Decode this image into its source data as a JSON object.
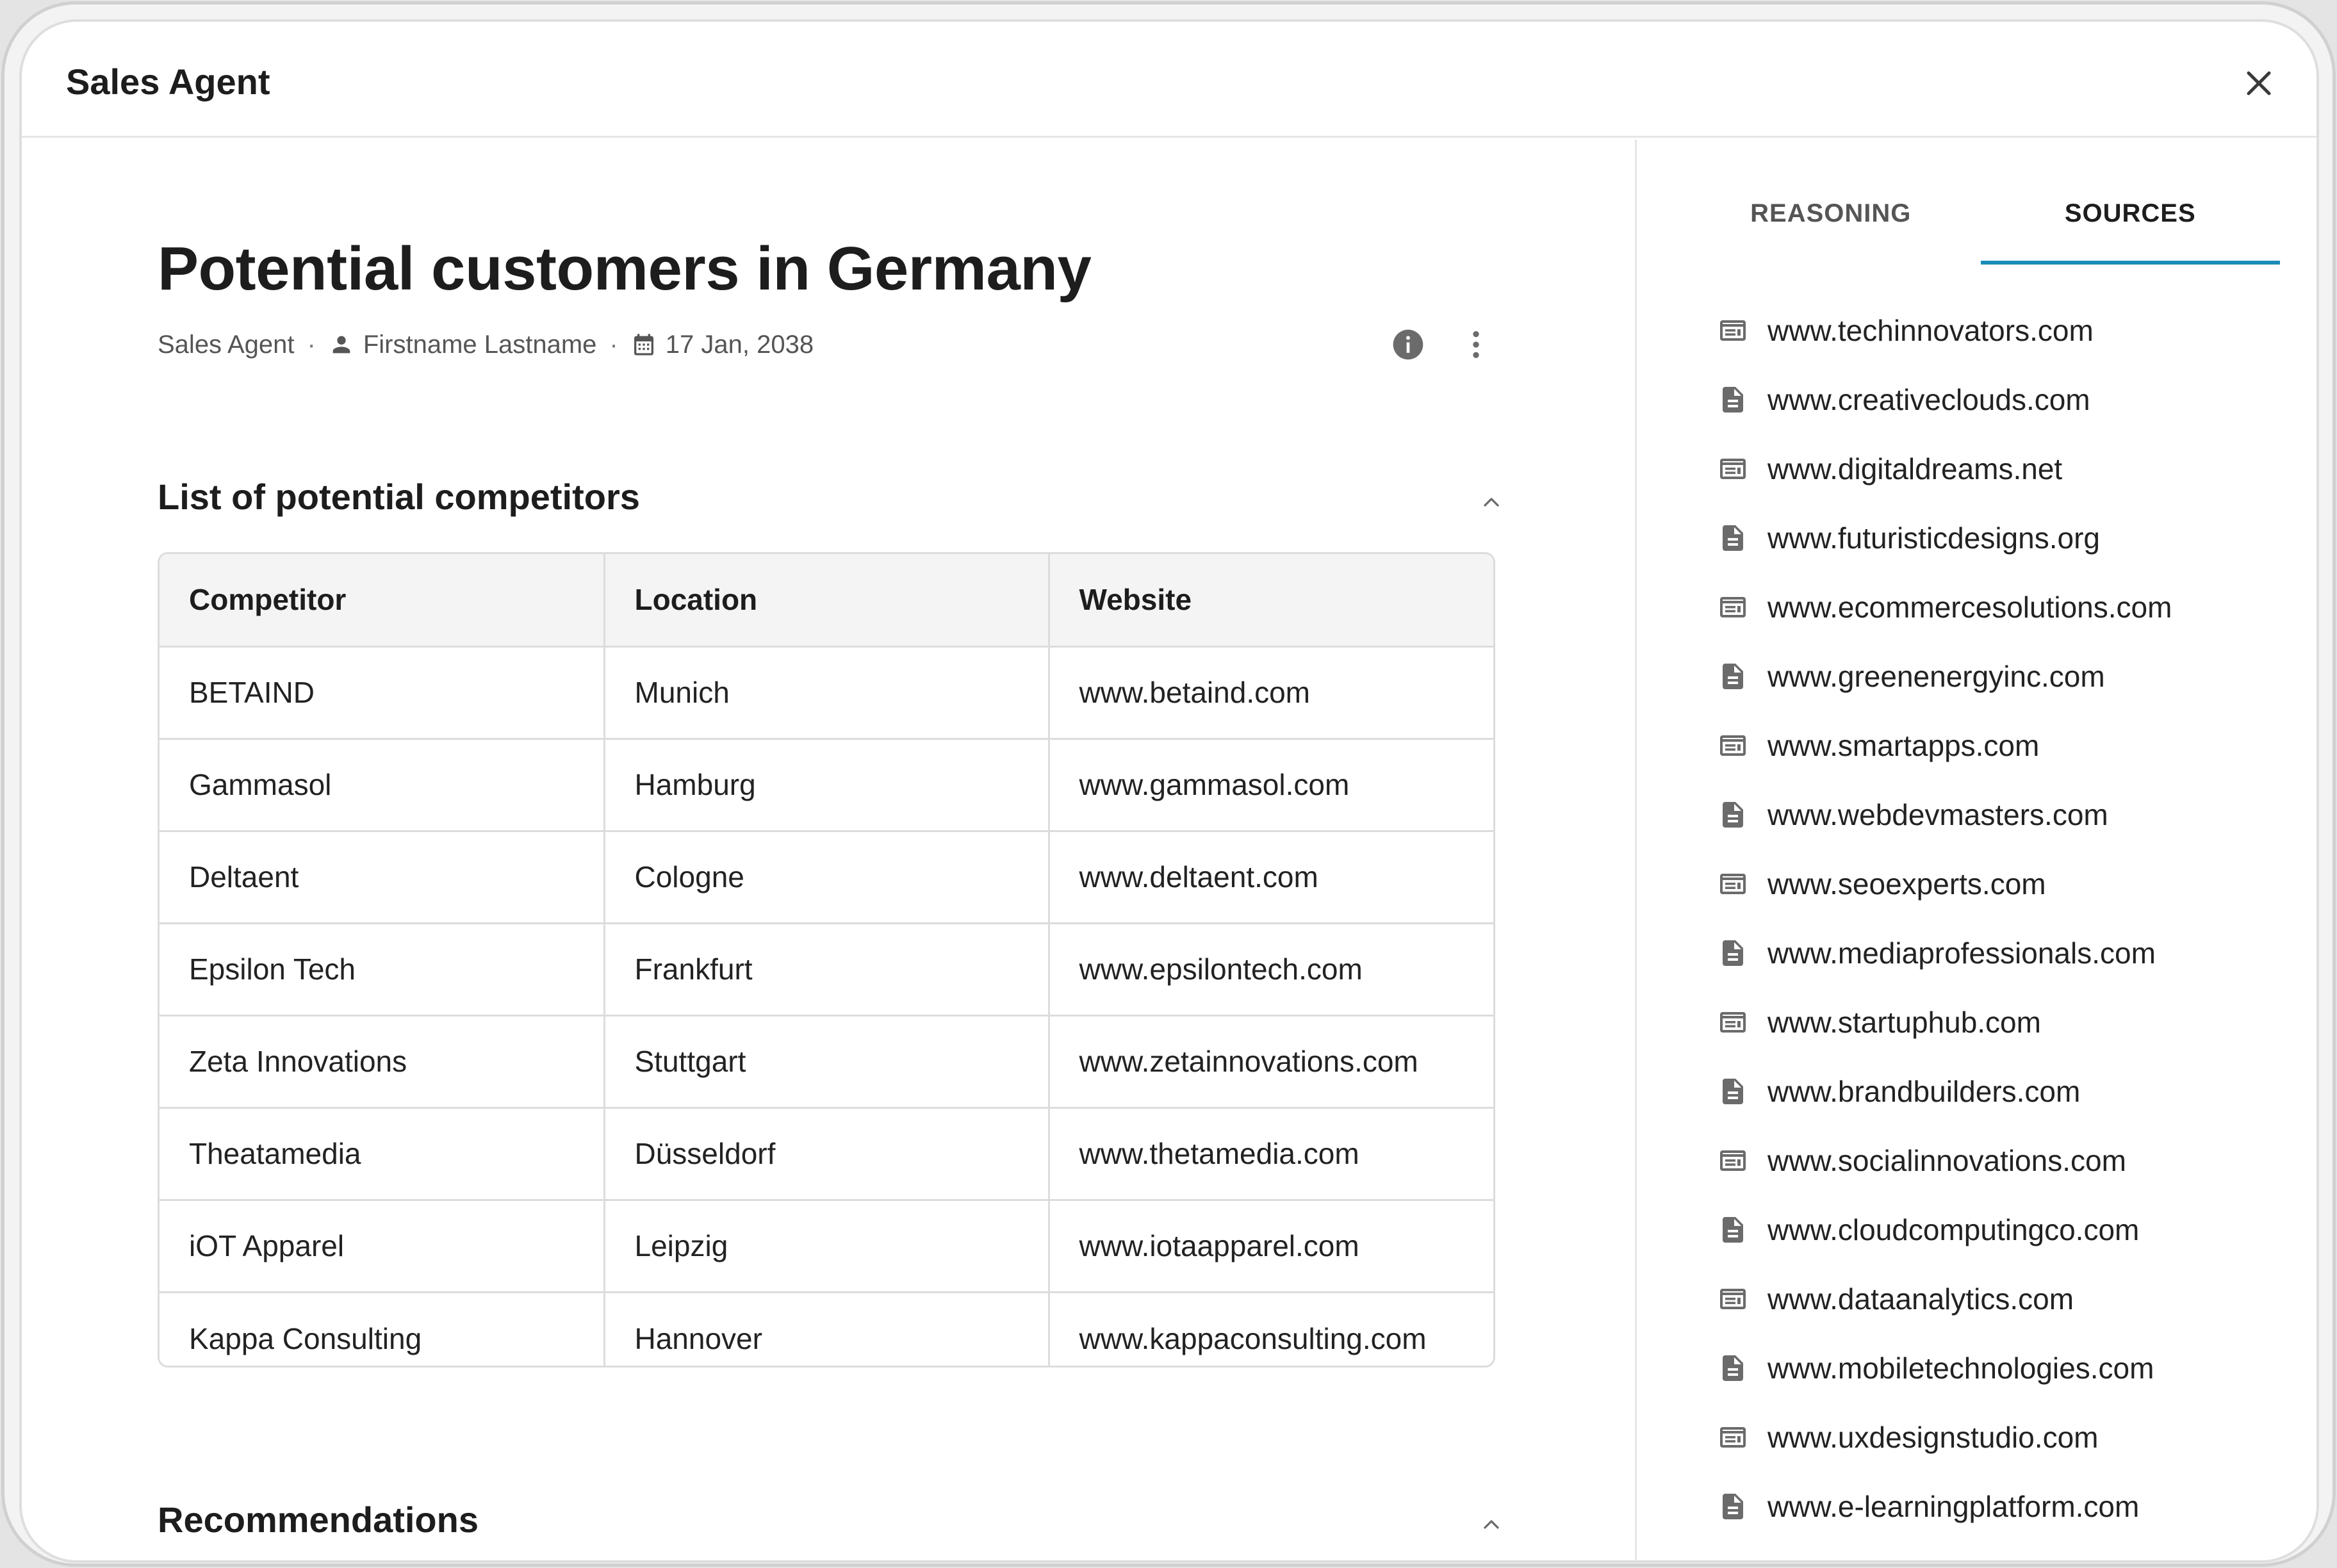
{
  "header": {
    "title": "Sales Agent"
  },
  "report": {
    "title": "Potential customers in Germany",
    "meta": {
      "agent": "Sales Agent",
      "author": "Firstname Lastname",
      "date": "17 Jan, 2038"
    }
  },
  "sections": {
    "competitors_title": "List of potential competitors",
    "recommendations_title": "Recommendations"
  },
  "table": {
    "columns": [
      "Competitor",
      "Location",
      "Website"
    ],
    "rows": [
      [
        "BETAIND",
        "Munich",
        "www.betaind.com"
      ],
      [
        "Gammasol",
        "Hamburg",
        "www.gammasol.com"
      ],
      [
        "Deltaent",
        "Cologne",
        "www.deltaent.com"
      ],
      [
        "Epsilon Tech",
        "Frankfurt",
        "www.epsilontech.com"
      ],
      [
        "Zeta Innovations",
        "Stuttgart",
        "www.zetainnovations.com"
      ],
      [
        "Theatamedia",
        "Düsseldorf",
        "www.thetamedia.com"
      ],
      [
        "iOT Apparel",
        "Leipzig",
        "www.iotaapparel.com"
      ],
      [
        "Kappa Consulting",
        "Hannover",
        "www.kappaconsulting.com"
      ]
    ]
  },
  "tabs": [
    {
      "label": "REASONING",
      "active": false
    },
    {
      "label": "SOURCES",
      "active": true
    }
  ],
  "accent_color": "#1a8bb8",
  "sources": [
    {
      "url": "www.techinnovators.com",
      "icon": "web-page-icon"
    },
    {
      "url": "www.creativeclouds.com",
      "icon": "document-icon"
    },
    {
      "url": "www.digitaldreams.net",
      "icon": "web-page-icon"
    },
    {
      "url": "www.futuristicdesigns.org",
      "icon": "document-icon"
    },
    {
      "url": "www.ecommercesolutions.com",
      "icon": "web-page-icon"
    },
    {
      "url": "www.greenenergyinc.com",
      "icon": "document-icon"
    },
    {
      "url": "www.smartapps.com",
      "icon": "web-page-icon"
    },
    {
      "url": "www.webdevmasters.com",
      "icon": "document-icon"
    },
    {
      "url": "www.seoexperts.com",
      "icon": "web-page-icon"
    },
    {
      "url": "www.mediaprofessionals.com",
      "icon": "document-icon"
    },
    {
      "url": "www.startuphub.com",
      "icon": "web-page-icon"
    },
    {
      "url": "www.brandbuilders.com",
      "icon": "document-icon"
    },
    {
      "url": "www.socialinnovations.com",
      "icon": "web-page-icon"
    },
    {
      "url": "www.cloudcomputingco.com",
      "icon": "document-icon"
    },
    {
      "url": "www.dataanalytics.com",
      "icon": "web-page-icon"
    },
    {
      "url": "www.mobiletechnologies.com",
      "icon": "document-icon"
    },
    {
      "url": "www.uxdesignstudio.com",
      "icon": "web-page-icon"
    },
    {
      "url": "www.e-learningplatform.com",
      "icon": "document-icon"
    }
  ]
}
